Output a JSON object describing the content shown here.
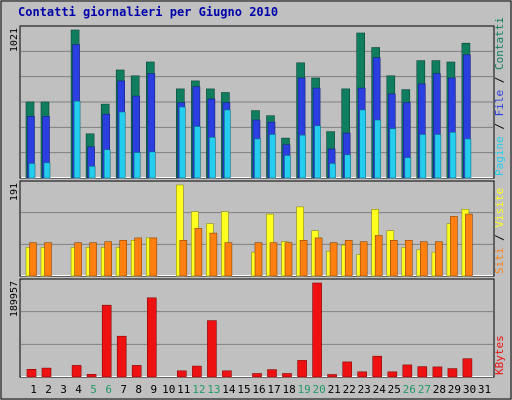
{
  "colors": {
    "background": "#c0c0c0",
    "title": "#0000aa",
    "visits": "#117d5f",
    "pages": "#2b3ee0",
    "files": "#24ccee",
    "sites": "#ff8010",
    "visite": "#ffff20",
    "kbytes": "#ee1111",
    "weekend": "#229966",
    "weekday": "#000000",
    "grid": "#808080"
  },
  "chart_data": {
    "type": "bar",
    "title": "Contatti giornalieri per Giugno 2010",
    "days": [
      1,
      2,
      3,
      4,
      5,
      6,
      7,
      8,
      9,
      10,
      11,
      12,
      13,
      14,
      15,
      16,
      17,
      18,
      19,
      20,
      21,
      22,
      23,
      24,
      25,
      26,
      27,
      28,
      29,
      30,
      31
    ],
    "weekend_days": [
      5,
      6,
      12,
      13,
      19,
      20,
      26,
      27
    ],
    "panels": [
      {
        "id": "hits",
        "max_label": "1021",
        "max": 1021,
        "right_labels": [
          {
            "text": "Pagine",
            "color_key": "files"
          },
          {
            "text": " / ",
            "color_key": "weekday"
          },
          {
            "text": "File",
            "color_key": "pages"
          },
          {
            "text": " / ",
            "color_key": "weekday"
          },
          {
            "text": "Contatti",
            "color_key": "visits"
          }
        ],
        "series": [
          {
            "name": "Contatti",
            "color_key": "visits",
            "values": [
              525,
              525,
              0,
              1021,
              305,
              510,
              745,
              705,
              800,
              0,
              615,
              670,
              615,
              590,
              0,
              465,
              430,
              275,
              795,
              690,
              320,
              615,
              1000,
              900,
              705,
              610,
              810,
              810,
              800,
              930,
              0
            ]
          },
          {
            "name": "File",
            "color_key": "pages",
            "values": [
              425,
              425,
              0,
              920,
              215,
              440,
              670,
              565,
              720,
              0,
              520,
              630,
              545,
              520,
              0,
              400,
              385,
              230,
              690,
              620,
              200,
              310,
              620,
              830,
              580,
              520,
              650,
              720,
              690,
              850,
              0
            ]
          },
          {
            "name": "Pagine",
            "color_key": "files",
            "values": [
              100,
              105,
              0,
              530,
              80,
              195,
              455,
              175,
              180,
              0,
              490,
              355,
              280,
              470,
              0,
              270,
              300,
              155,
              295,
              360,
              100,
              160,
              470,
              400,
              340,
              140,
              300,
              300,
              315,
              270,
              0
            ]
          }
        ]
      },
      {
        "id": "visits",
        "max_label": "191",
        "max": 191,
        "right_labels": [
          {
            "text": "Siti",
            "color_key": "sites"
          },
          {
            "text": " / ",
            "color_key": "weekday"
          },
          {
            "text": "Visite",
            "color_key": "visite"
          }
        ],
        "series": [
          {
            "name": "Visite",
            "color_key": "visite",
            "values": [
              60,
              60,
              0,
              60,
              60,
              60,
              60,
              75,
              80,
              0,
              191,
              135,
              110,
              135,
              0,
              50,
              130,
              72,
              145,
              95,
              52,
              65,
              45,
              140,
              95,
              60,
              55,
              50,
              110,
              140,
              0
            ]
          },
          {
            "name": "Siti",
            "color_key": "sites",
            "values": [
              70,
              70,
              0,
              70,
              70,
              72,
              75,
              80,
              80,
              0,
              75,
              100,
              90,
              70,
              0,
              70,
              70,
              70,
              75,
              80,
              70,
              75,
              72,
              85,
              75,
              75,
              72,
              72,
              125,
              130,
              0
            ]
          }
        ]
      },
      {
        "id": "kbytes",
        "max_label": "189957",
        "max": 189957,
        "right_labels": [
          {
            "text": "KBytes",
            "color_key": "kbytes"
          }
        ],
        "series": [
          {
            "name": "KBytes",
            "color_key": "kbytes",
            "values": [
              15500,
              18000,
              0,
              23500,
              5500,
              145000,
              82500,
              23500,
              160000,
              0,
              12500,
              22000,
              114000,
              12500,
              0,
              7000,
              15000,
              7000,
              33500,
              189957,
              5000,
              30500,
              10500,
              42000,
              10500,
              24500,
              21000,
              20500,
              17000,
              37000,
              0
            ]
          }
        ]
      }
    ]
  }
}
